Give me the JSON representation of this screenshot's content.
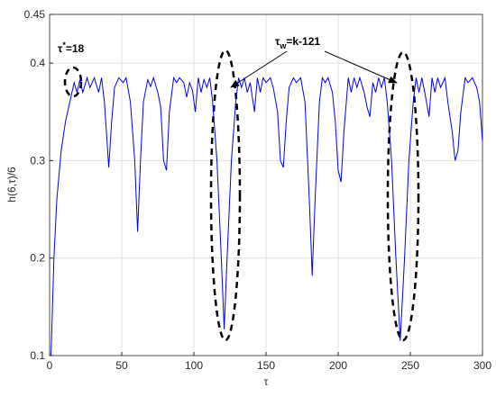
{
  "chart_data": {
    "type": "line",
    "x_label": "τ",
    "y_label": "h(6,τ)/6",
    "annotations": [
      {
        "base": "τ",
        "sup": "*",
        "rest": "=18"
      },
      {
        "base": "τ",
        "sub": "w",
        "rest": "=k-121"
      }
    ],
    "xlim": [
      0,
      300
    ],
    "ylim": [
      0.1,
      0.45
    ],
    "xticks": [
      0,
      50,
      100,
      150,
      200,
      250,
      300
    ],
    "yticks": [
      0.1,
      0.2,
      0.3,
      0.4,
      0.45
    ],
    "grid": true,
    "series": [
      {
        "color": "#0000ee",
        "x": [
          1,
          3,
          5,
          8,
          11,
          14,
          17,
          19,
          21,
          23,
          26,
          28,
          31,
          34,
          36,
          38,
          41,
          43,
          45,
          48,
          51,
          53,
          56,
          59,
          61,
          63,
          65,
          68,
          70,
          72,
          75,
          77,
          79,
          81,
          83,
          86,
          88,
          90,
          93,
          95,
          97,
          99,
          101,
          103,
          105,
          107,
          109,
          111,
          113,
          116,
          119,
          121,
          123,
          126,
          129,
          131,
          133,
          135,
          137,
          139,
          142,
          144,
          146,
          148,
          150,
          153,
          155,
          158,
          160,
          162,
          164,
          166,
          169,
          171,
          174,
          177,
          180,
          182,
          184,
          187,
          189,
          191,
          193,
          196,
          198,
          200,
          202,
          204,
          207,
          209,
          211,
          213,
          215,
          218,
          220,
          222,
          224,
          226,
          228,
          230,
          232,
          234,
          237,
          240,
          243,
          246,
          249,
          252,
          254,
          256,
          258,
          260,
          263,
          265,
          267,
          269,
          271,
          274,
          276,
          279,
          281,
          283,
          285,
          288,
          290,
          293,
          296,
          298,
          300
        ],
        "values": [
          0.1,
          0.2,
          0.26,
          0.31,
          0.34,
          0.36,
          0.38,
          0.37,
          0.383,
          0.37,
          0.385,
          0.375,
          0.385,
          0.37,
          0.385,
          0.36,
          0.293,
          0.34,
          0.375,
          0.385,
          0.38,
          0.385,
          0.36,
          0.3,
          0.227,
          0.3,
          0.36,
          0.383,
          0.376,
          0.385,
          0.37,
          0.355,
          0.3,
          0.29,
          0.35,
          0.385,
          0.38,
          0.385,
          0.38,
          0.365,
          0.38,
          0.372,
          0.35,
          0.385,
          0.37,
          0.383,
          0.375,
          0.385,
          0.36,
          0.3,
          0.2,
          0.127,
          0.2,
          0.3,
          0.36,
          0.385,
          0.375,
          0.385,
          0.37,
          0.38,
          0.35,
          0.385,
          0.37,
          0.385,
          0.38,
          0.385,
          0.375,
          0.35,
          0.3,
          0.293,
          0.34,
          0.375,
          0.385,
          0.38,
          0.385,
          0.36,
          0.26,
          0.182,
          0.26,
          0.36,
          0.385,
          0.38,
          0.385,
          0.37,
          0.34,
          0.29,
          0.278,
          0.33,
          0.385,
          0.37,
          0.385,
          0.375,
          0.385,
          0.37,
          0.355,
          0.345,
          0.38,
          0.37,
          0.385,
          0.375,
          0.385,
          0.36,
          0.3,
          0.2,
          0.115,
          0.2,
          0.3,
          0.36,
          0.385,
          0.37,
          0.385,
          0.37,
          0.345,
          0.385,
          0.37,
          0.385,
          0.375,
          0.385,
          0.36,
          0.33,
          0.3,
          0.31,
          0.35,
          0.385,
          0.38,
          0.385,
          0.375,
          0.36,
          0.32
        ]
      }
    ]
  }
}
